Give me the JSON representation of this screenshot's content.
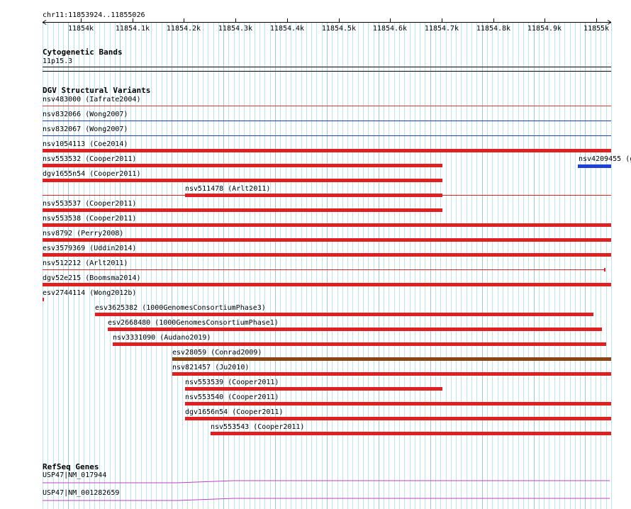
{
  "ruler": {
    "position": "chr11:11853924..11855026",
    "ticks": [
      "11854k",
      "11854.1k",
      "11854.2k",
      "11854.3k",
      "11854.4k",
      "11854.5k",
      "11854.6k",
      "11854.7k",
      "11854.8k",
      "11854.9k",
      "11855k"
    ]
  },
  "cytoband": {
    "title": "Cytogenetic Bands",
    "band": "11p15.3"
  },
  "dgv": {
    "title": "DGV Structural Variants",
    "rows": [
      {
        "label": "nsv483000 (Iafrate2004)",
        "start": 0,
        "end": 1103,
        "style": "line",
        "color": "#d63a3a"
      },
      {
        "label": "nsv832066 (Wong2007)",
        "start": 0,
        "end": 1103,
        "style": "line",
        "color": "#1f3fb3"
      },
      {
        "label": "nsv832067 (Wong2007)",
        "start": 0,
        "end": 1103,
        "style": "line",
        "color": "#1f3fb3"
      },
      {
        "label": "nsv1054113 (Coe2014)",
        "start": 0,
        "end": 1103,
        "style": "bar",
        "color": "#e02020"
      },
      {
        "label": "nsv553532 (Cooper2011)",
        "start": 0,
        "end": 776,
        "style": "bar",
        "color": "#e02020"
      },
      {
        "label": "dgv1655n54 (Cooper2011)",
        "start": 0,
        "end": 776,
        "style": "bar",
        "color": "#e02020"
      },
      {
        "label": "nsv511478 (Arlt2011)",
        "start": 276,
        "end": 776,
        "style": "barline",
        "color": "#e02020"
      },
      {
        "label": "nsv553537 (Cooper2011)",
        "start": 0,
        "end": 776,
        "style": "bar",
        "color": "#e02020"
      },
      {
        "label": "nsv553538 (Cooper2011)",
        "start": 0,
        "end": 1103,
        "style": "bar",
        "color": "#e02020"
      },
      {
        "label": "nsv8792 (Perry2008)",
        "start": 0,
        "end": 1103,
        "style": "bar",
        "color": "#e02020"
      },
      {
        "label": "esv3579369 (Uddin2014)",
        "start": 0,
        "end": 1103,
        "style": "bar",
        "color": "#e02020"
      },
      {
        "label": "nsv512212 (Arlt2011)",
        "start": 0,
        "end": 1089,
        "style": "linecap",
        "color": "#e02020"
      },
      {
        "label": "dgv52e215 (Boomsma2014)",
        "start": 0,
        "end": 1103,
        "style": "bar",
        "color": "#e02020"
      },
      {
        "label": "esv2744114 (Wong2012b)",
        "start": 0,
        "end": 2,
        "style": "cap",
        "color": "#e02020"
      },
      {
        "label": "esv3625382 (1000GenomesConsortiumPhase3)",
        "start": 102,
        "end": 1068,
        "style": "bar",
        "color": "#e02020"
      },
      {
        "label": "esv2668480 (1000GenomesConsortiumPhase1)",
        "start": 126,
        "end": 1085,
        "style": "bar",
        "color": "#e02020"
      },
      {
        "label": "nsv3331090 (Audano2019)",
        "start": 136,
        "end": 1093,
        "style": "bar",
        "color": "#e02020"
      },
      {
        "label": "esv28059 (Conrad2009)",
        "start": 252,
        "end": 1103,
        "style": "bar",
        "color": "#8b4513"
      },
      {
        "label": "nsv821457 (Ju2010)",
        "start": 252,
        "end": 1103,
        "style": "bar",
        "color": "#e02020"
      },
      {
        "label": "nsv553539 (Cooper2011)",
        "start": 276,
        "end": 776,
        "style": "bar",
        "color": "#e02020"
      },
      {
        "label": "nsv553540 (Cooper2011)",
        "start": 276,
        "end": 1103,
        "style": "bar",
        "color": "#e02020"
      },
      {
        "label": "dgv1656n54 (Cooper2011)",
        "start": 276,
        "end": 1103,
        "style": "bar",
        "color": "#e02020"
      },
      {
        "label": "nsv553543 (Cooper2011)",
        "start": 326,
        "end": 1103,
        "style": "bar",
        "color": "#e02020"
      }
    ],
    "extra": {
      "label": "nsv4209455 (g",
      "start": 1039,
      "end": 1103,
      "color": "#1f3fd6"
    }
  },
  "refseq": {
    "title": "RefSeq Genes",
    "genes": [
      {
        "label": "USP47|NM_017944",
        "color": "#c040c0"
      },
      {
        "label": "USP47|NM_001282659",
        "color": "#c040c0"
      }
    ]
  }
}
